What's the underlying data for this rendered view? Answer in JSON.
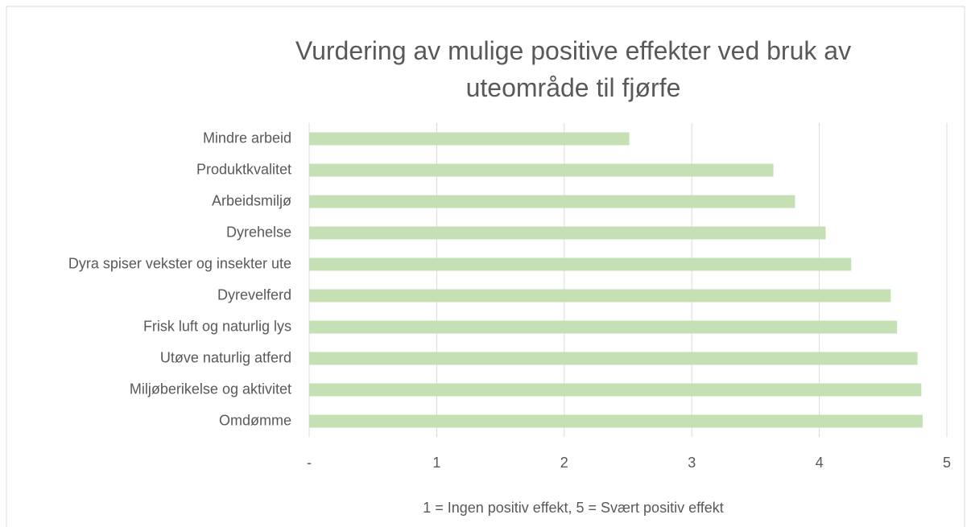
{
  "chart_data": {
    "type": "hbar",
    "title": "Vurdering av mulige positive effekter ved bruk av uteområde til fjørfe",
    "xlabel": "1 = Ingen positiv effekt, 5 = Svært positiv effekt",
    "categories": [
      "Mindre arbeid",
      "Produktkvalitet",
      "Arbeidsmiljø",
      "Dyrehelse",
      "Dyra spiser vekster og insekter ute",
      "Dyrevelferd",
      "Frisk luft og naturlig lys",
      "Utøve naturlig atferd",
      "Miljøberikelse og aktivitet",
      "Omdømme"
    ],
    "values": [
      2.51,
      3.64,
      3.81,
      4.05,
      4.25,
      4.56,
      4.61,
      4.77,
      4.8,
      4.81
    ],
    "color": "#c5e0b4",
    "xlim": [
      0,
      5
    ],
    "xticks": [
      {
        "value": 0,
        "label": "-"
      },
      1,
      2,
      3,
      4,
      5
    ],
    "grid": true
  }
}
